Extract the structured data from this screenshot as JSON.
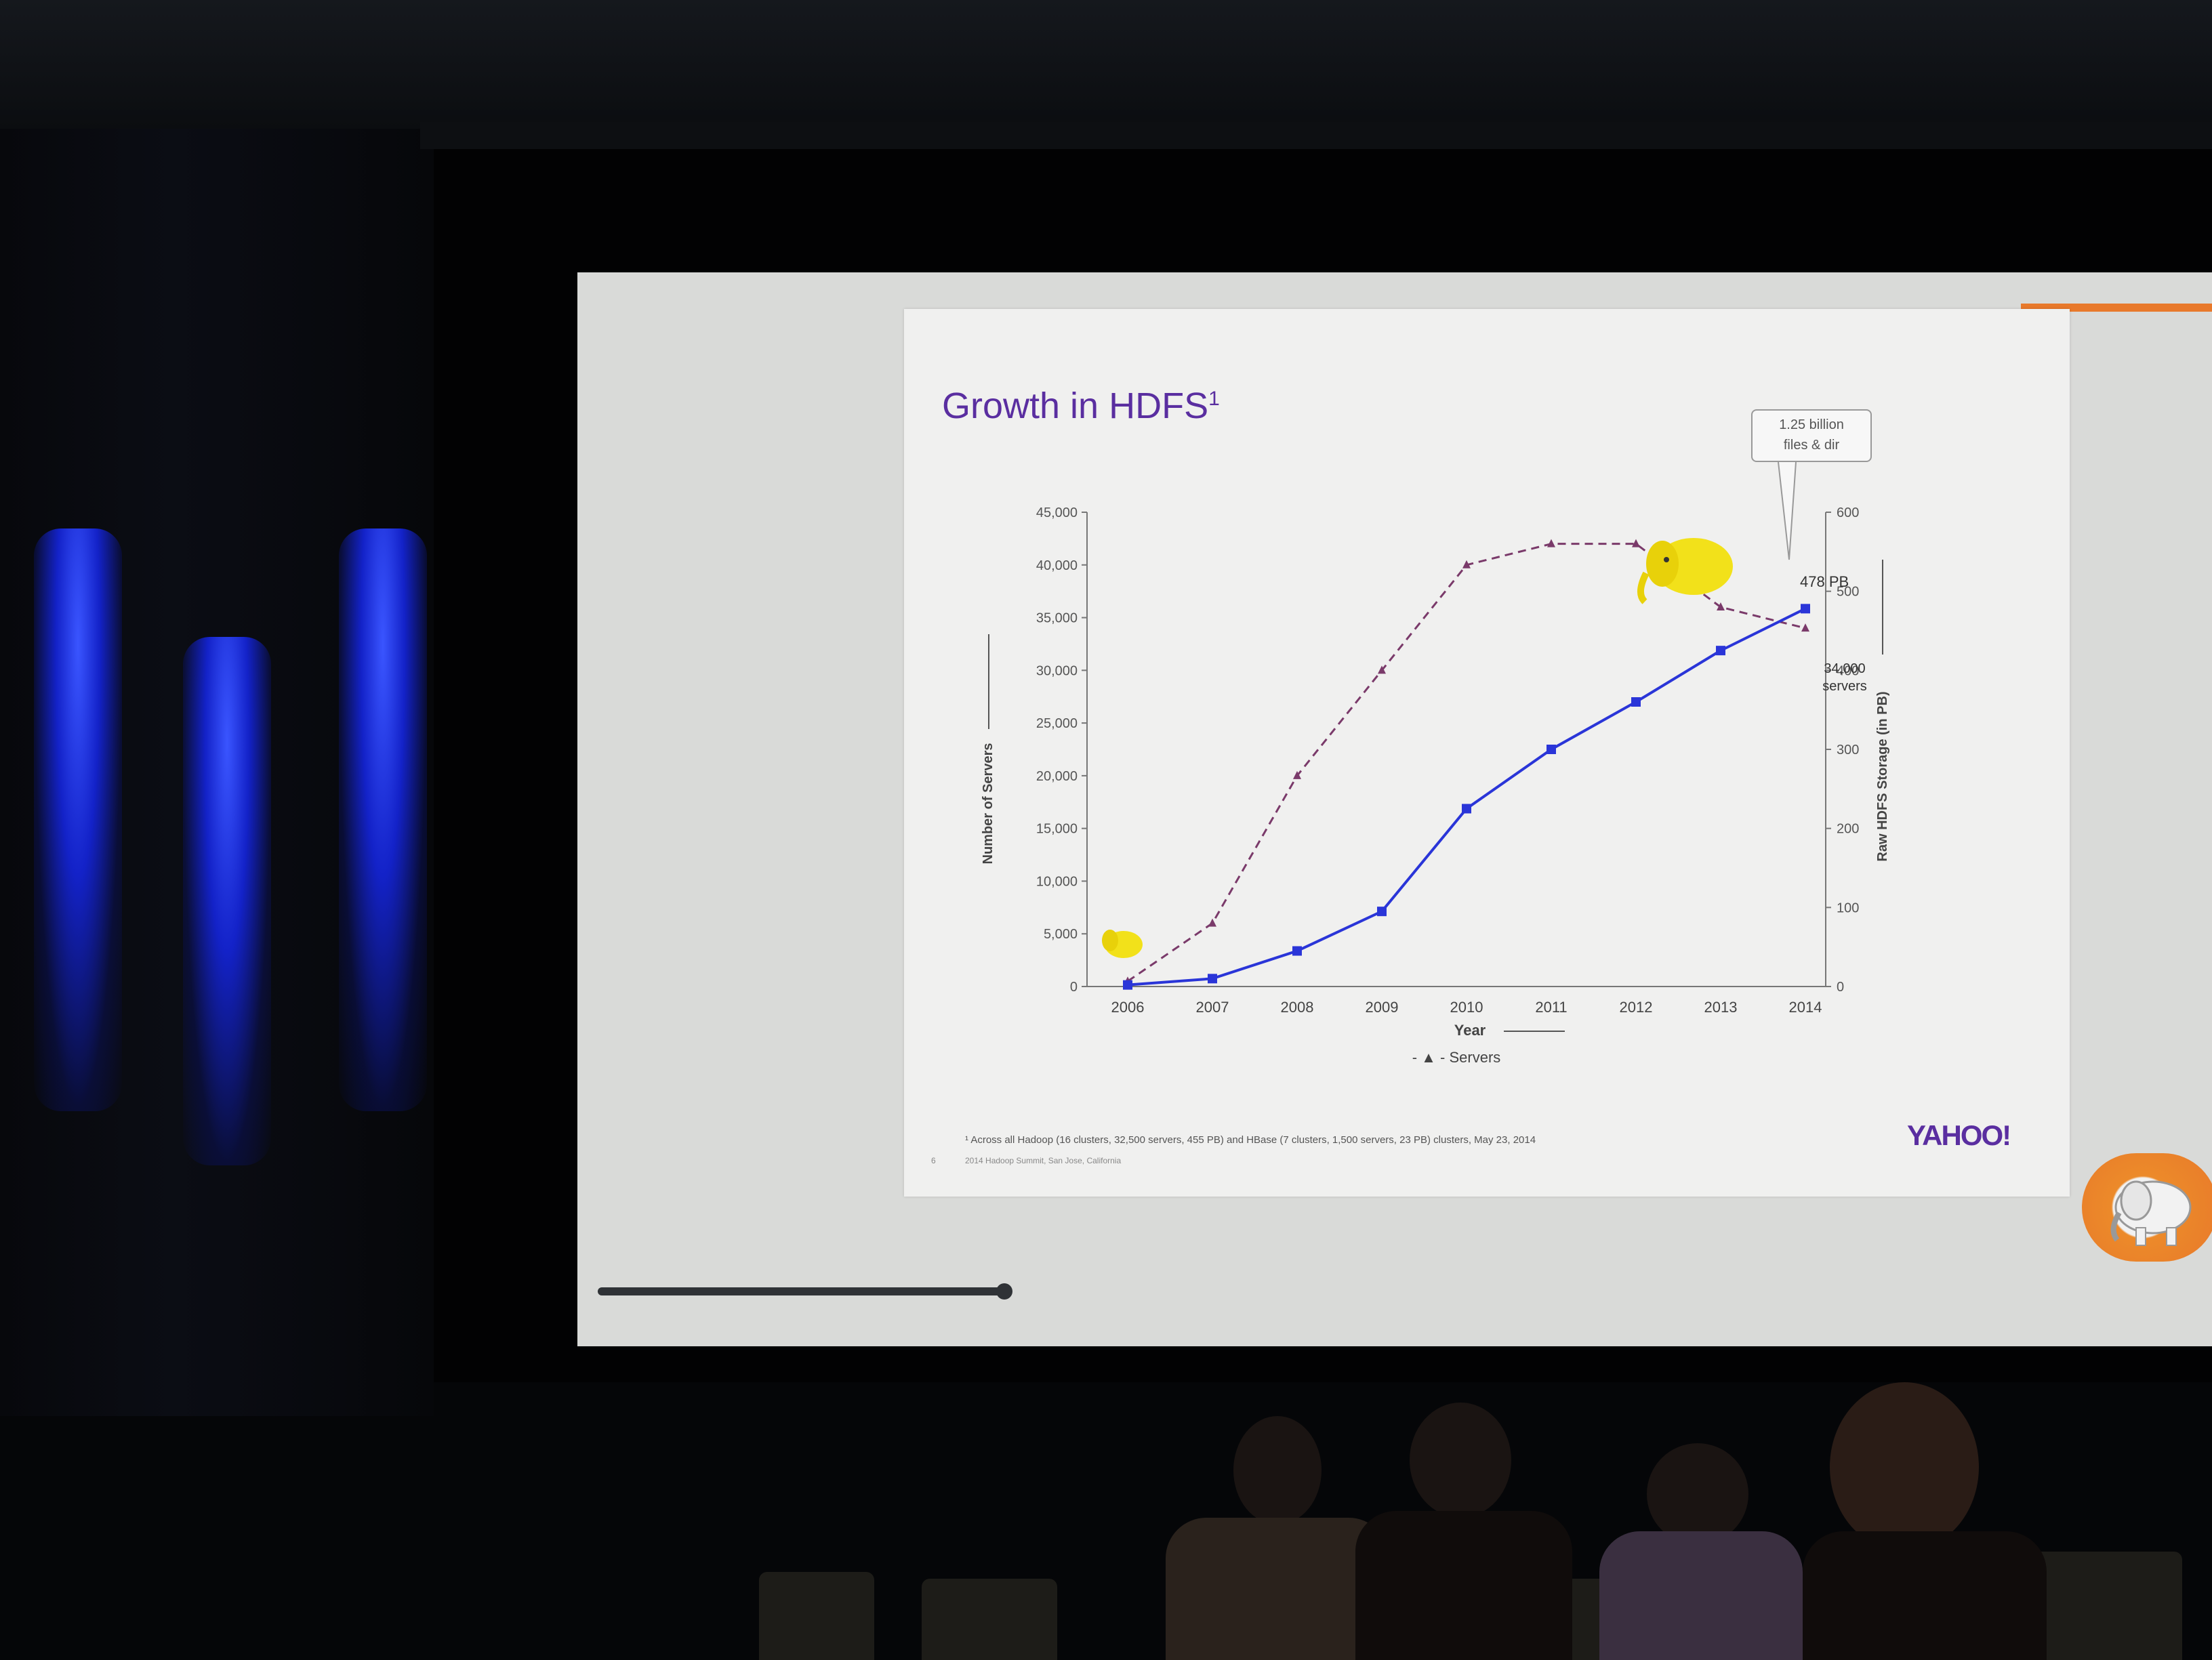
{
  "slide": {
    "title": "Growth in HDFS",
    "title_superscript": "1",
    "callout": [
      "1.25 billion",
      "files & dir"
    ],
    "annotation_storage": "478 PB",
    "annotation_servers": [
      "34,000",
      "servers"
    ],
    "footnote": "¹ Across all Hadoop (16 clusters, 32,500 servers, 455 PB) and HBase (7 clusters, 1,500 servers, 23 PB) clusters, May 23, 2014",
    "footnote2": "2014 Hadoop Summit, San Jose, California",
    "page_number": "6",
    "brand": "YAHOO!",
    "accent_color": "#e8792b",
    "title_color": "#5a2ea0"
  },
  "chart_data": {
    "type": "line",
    "categories": [
      "2006",
      "2007",
      "2008",
      "2009",
      "2010",
      "2011",
      "2012",
      "2013",
      "2014"
    ],
    "xlabel": "Year",
    "ylabel_left": "Number of Servers",
    "ylabel_right": "Raw HDFS Storage (in PB)",
    "ylim_left": [
      0,
      45000
    ],
    "ylim_right": [
      0,
      600
    ],
    "yticks_left": [
      "0",
      "5,000",
      "10,000",
      "15,000",
      "20,000",
      "25,000",
      "30,000",
      "35,000",
      "40,000",
      "45,000"
    ],
    "yticks_right": [
      "0",
      "100",
      "200",
      "300",
      "400",
      "500",
      "600"
    ],
    "series": [
      {
        "name": "Servers",
        "axis": "left",
        "style": "dashed",
        "color": "#7a3a6a",
        "values": [
          500,
          6000,
          20000,
          30000,
          40000,
          42000,
          42000,
          36000,
          34000
        ]
      },
      {
        "axis": "right",
        "style": "solid",
        "color": "#2a35d8",
        "values": [
          2,
          10,
          45,
          95,
          225,
          300,
          360,
          425,
          478
        ]
      }
    ],
    "legend": [
      "- ▲ - Servers"
    ],
    "legend_position": "bottom"
  }
}
